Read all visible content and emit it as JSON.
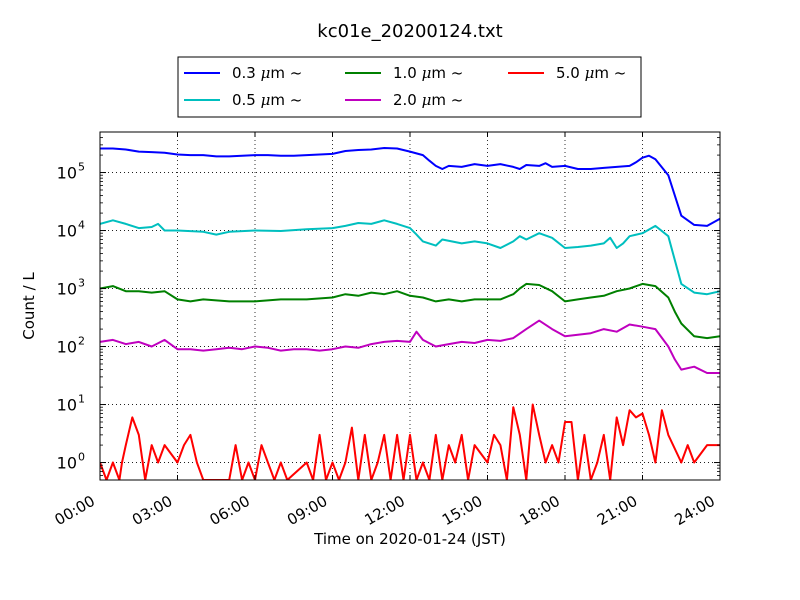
{
  "chart_data": {
    "type": "line",
    "title": "kc01e_20200124.txt",
    "xlabel": "Time on 2020-01-24 (JST)",
    "ylabel": "Count / L",
    "yscale": "log",
    "ylim": [
      0.5,
      500000
    ],
    "grid": true,
    "grid_style": "dotted",
    "legend_placement": "top-center",
    "x_unit": "hours since 00:00",
    "xlim": [
      0,
      24
    ],
    "x_ticks": [
      {
        "value": 0,
        "label": "00:00"
      },
      {
        "value": 3,
        "label": "03:00"
      },
      {
        "value": 6,
        "label": "06:00"
      },
      {
        "value": 9,
        "label": "09:00"
      },
      {
        "value": 12,
        "label": "12:00"
      },
      {
        "value": 15,
        "label": "15:00"
      },
      {
        "value": 18,
        "label": "18:00"
      },
      {
        "value": 21,
        "label": "21:00"
      },
      {
        "value": 24,
        "label": "24:00"
      }
    ],
    "y_ticks": [
      {
        "value": 1,
        "base": "10",
        "exp": "0"
      },
      {
        "value": 10,
        "base": "10",
        "exp": "1"
      },
      {
        "value": 100,
        "base": "10",
        "exp": "2"
      },
      {
        "value": 1000,
        "base": "10",
        "exp": "3"
      },
      {
        "value": 10000,
        "base": "10",
        "exp": "4"
      },
      {
        "value": 100000,
        "base": "10",
        "exp": "5"
      }
    ],
    "series": [
      {
        "name": "0.3 μm ~",
        "size": "0.3",
        "color": "#0000ff",
        "points": [
          [
            0,
            260000
          ],
          [
            0.5,
            260000
          ],
          [
            1,
            250000
          ],
          [
            1.5,
            230000
          ],
          [
            2,
            225000
          ],
          [
            2.5,
            220000
          ],
          [
            3,
            205000
          ],
          [
            3.5,
            200000
          ],
          [
            4,
            200000
          ],
          [
            4.5,
            190000
          ],
          [
            5,
            190000
          ],
          [
            5.5,
            195000
          ],
          [
            6,
            200000
          ],
          [
            6.5,
            200000
          ],
          [
            7,
            195000
          ],
          [
            7.5,
            195000
          ],
          [
            8,
            200000
          ],
          [
            8.5,
            205000
          ],
          [
            9,
            210000
          ],
          [
            9.5,
            235000
          ],
          [
            10,
            245000
          ],
          [
            10.5,
            250000
          ],
          [
            11,
            265000
          ],
          [
            11.5,
            260000
          ],
          [
            12,
            230000
          ],
          [
            12.5,
            200000
          ],
          [
            12.75,
            160000
          ],
          [
            13,
            130000
          ],
          [
            13.25,
            115000
          ],
          [
            13.5,
            130000
          ],
          [
            14,
            125000
          ],
          [
            14.5,
            140000
          ],
          [
            15,
            130000
          ],
          [
            15.5,
            140000
          ],
          [
            16,
            125000
          ],
          [
            16.25,
            115000
          ],
          [
            16.5,
            135000
          ],
          [
            17,
            130000
          ],
          [
            17.25,
            145000
          ],
          [
            17.5,
            125000
          ],
          [
            18,
            130000
          ],
          [
            18.5,
            115000
          ],
          [
            19,
            115000
          ],
          [
            19.5,
            120000
          ],
          [
            20,
            125000
          ],
          [
            20.5,
            130000
          ],
          [
            20.75,
            150000
          ],
          [
            21,
            180000
          ],
          [
            21.25,
            195000
          ],
          [
            21.5,
            170000
          ],
          [
            22,
            90000
          ],
          [
            22.5,
            18000
          ],
          [
            23,
            12500
          ],
          [
            23.5,
            12000
          ],
          [
            24,
            16000
          ]
        ]
      },
      {
        "name": "0.5 μm ~",
        "size": "0.5",
        "color": "#00bfbf",
        "points": [
          [
            0,
            13000
          ],
          [
            0.5,
            15000
          ],
          [
            1,
            13000
          ],
          [
            1.5,
            11000
          ],
          [
            2,
            11500
          ],
          [
            2.25,
            13000
          ],
          [
            2.5,
            10000
          ],
          [
            3,
            10000
          ],
          [
            4,
            9500
          ],
          [
            4.5,
            8500
          ],
          [
            5,
            9500
          ],
          [
            6,
            10000
          ],
          [
            7,
            9800
          ],
          [
            8,
            10500
          ],
          [
            9,
            11000
          ],
          [
            9.5,
            12000
          ],
          [
            10,
            13500
          ],
          [
            10.5,
            13000
          ],
          [
            11,
            15000
          ],
          [
            11.5,
            13000
          ],
          [
            12,
            11000
          ],
          [
            12.25,
            8500
          ],
          [
            12.5,
            6500
          ],
          [
            13,
            5500
          ],
          [
            13.25,
            7000
          ],
          [
            14,
            6000
          ],
          [
            14.5,
            6500
          ],
          [
            15,
            6000
          ],
          [
            15.5,
            5000
          ],
          [
            16,
            6500
          ],
          [
            16.25,
            8000
          ],
          [
            16.5,
            7000
          ],
          [
            17,
            9000
          ],
          [
            17.5,
            7500
          ],
          [
            18,
            5000
          ],
          [
            18.5,
            5200
          ],
          [
            19,
            5500
          ],
          [
            19.5,
            6000
          ],
          [
            19.75,
            7500
          ],
          [
            20,
            5000
          ],
          [
            20.25,
            6000
          ],
          [
            20.5,
            8000
          ],
          [
            21,
            9000
          ],
          [
            21.5,
            12000
          ],
          [
            22,
            8000
          ],
          [
            22.5,
            1200
          ],
          [
            23,
            850
          ],
          [
            23.5,
            800
          ],
          [
            24,
            900
          ]
        ]
      },
      {
        "name": "1.0 μm ~",
        "size": "1.0",
        "color": "#008000",
        "points": [
          [
            0,
            1000
          ],
          [
            0.5,
            1100
          ],
          [
            1,
            900
          ],
          [
            1.5,
            900
          ],
          [
            2,
            850
          ],
          [
            2.5,
            900
          ],
          [
            3,
            650
          ],
          [
            3.5,
            600
          ],
          [
            4,
            650
          ],
          [
            5,
            600
          ],
          [
            6,
            600
          ],
          [
            7,
            650
          ],
          [
            8,
            650
          ],
          [
            9,
            700
          ],
          [
            9.5,
            800
          ],
          [
            10,
            750
          ],
          [
            10.5,
            850
          ],
          [
            11,
            800
          ],
          [
            11.5,
            900
          ],
          [
            12,
            750
          ],
          [
            12.5,
            700
          ],
          [
            13,
            600
          ],
          [
            13.5,
            650
          ],
          [
            14,
            600
          ],
          [
            14.5,
            650
          ],
          [
            15,
            650
          ],
          [
            15.5,
            650
          ],
          [
            16,
            800
          ],
          [
            16.25,
            1000
          ],
          [
            16.5,
            1200
          ],
          [
            17,
            1150
          ],
          [
            17.5,
            900
          ],
          [
            18,
            600
          ],
          [
            18.5,
            650
          ],
          [
            19,
            700
          ],
          [
            19.5,
            750
          ],
          [
            20,
            900
          ],
          [
            20.5,
            1000
          ],
          [
            21,
            1200
          ],
          [
            21.5,
            1100
          ],
          [
            22,
            700
          ],
          [
            22.25,
            400
          ],
          [
            22.5,
            250
          ],
          [
            23,
            150
          ],
          [
            23.5,
            140
          ],
          [
            24,
            150
          ]
        ]
      },
      {
        "name": "2.0 μm ~",
        "size": "2.0",
        "color": "#bf00bf",
        "points": [
          [
            0,
            120
          ],
          [
            0.5,
            130
          ],
          [
            1,
            110
          ],
          [
            1.5,
            120
          ],
          [
            2,
            100
          ],
          [
            2.5,
            130
          ],
          [
            3,
            90
          ],
          [
            3.5,
            90
          ],
          [
            4,
            85
          ],
          [
            4.5,
            90
          ],
          [
            5,
            95
          ],
          [
            5.5,
            90
          ],
          [
            6,
            100
          ],
          [
            6.5,
            95
          ],
          [
            7,
            85
          ],
          [
            7.5,
            90
          ],
          [
            8,
            90
          ],
          [
            8.5,
            85
          ],
          [
            9,
            90
          ],
          [
            9.5,
            100
          ],
          [
            10,
            95
          ],
          [
            10.5,
            110
          ],
          [
            11,
            120
          ],
          [
            11.5,
            125
          ],
          [
            12,
            120
          ],
          [
            12.25,
            180
          ],
          [
            12.5,
            130
          ],
          [
            13,
            100
          ],
          [
            13.5,
            110
          ],
          [
            14,
            120
          ],
          [
            14.5,
            115
          ],
          [
            15,
            130
          ],
          [
            15.5,
            125
          ],
          [
            16,
            140
          ],
          [
            16.5,
            200
          ],
          [
            17,
            280
          ],
          [
            17.5,
            200
          ],
          [
            18,
            150
          ],
          [
            18.5,
            160
          ],
          [
            19,
            170
          ],
          [
            19.5,
            200
          ],
          [
            20,
            180
          ],
          [
            20.5,
            240
          ],
          [
            21,
            220
          ],
          [
            21.5,
            200
          ],
          [
            22,
            100
          ],
          [
            22.25,
            60
          ],
          [
            22.5,
            40
          ],
          [
            23,
            45
          ],
          [
            23.5,
            35
          ],
          [
            24,
            35
          ]
        ]
      },
      {
        "name": "5.0 μm ~",
        "size": "5.0",
        "color": "#ff0000",
        "points": [
          [
            0,
            1
          ],
          [
            0.25,
            0.5
          ],
          [
            0.5,
            1
          ],
          [
            0.75,
            0.5
          ],
          [
            0.85,
            1
          ],
          [
            1,
            2
          ],
          [
            1.25,
            6
          ],
          [
            1.5,
            3
          ],
          [
            1.75,
            0.5
          ],
          [
            2,
            2
          ],
          [
            2.25,
            1
          ],
          [
            2.5,
            2
          ],
          [
            3,
            1
          ],
          [
            3.25,
            2
          ],
          [
            3.5,
            3
          ],
          [
            3.75,
            1
          ],
          [
            4,
            0.5
          ],
          [
            4.5,
            0.5
          ],
          [
            5,
            0.5
          ],
          [
            5.25,
            2
          ],
          [
            5.5,
            0.5
          ],
          [
            5.75,
            1
          ],
          [
            6,
            0.5
          ],
          [
            6.25,
            2
          ],
          [
            6.5,
            1
          ],
          [
            6.75,
            0.5
          ],
          [
            7,
            1
          ],
          [
            7.25,
            0.5
          ],
          [
            8,
            1
          ],
          [
            8.25,
            0.5
          ],
          [
            8.5,
            3
          ],
          [
            8.75,
            0.5
          ],
          [
            9,
            1
          ],
          [
            9.25,
            0.5
          ],
          [
            9.5,
            1
          ],
          [
            9.75,
            4
          ],
          [
            10,
            0.5
          ],
          [
            10.25,
            3
          ],
          [
            10.5,
            0.5
          ],
          [
            10.75,
            1
          ],
          [
            11,
            3
          ],
          [
            11.25,
            0.5
          ],
          [
            11.5,
            3
          ],
          [
            11.75,
            0.5
          ],
          [
            12,
            3
          ],
          [
            12.25,
            0.5
          ],
          [
            12.5,
            1
          ],
          [
            12.75,
            0.5
          ],
          [
            13,
            3
          ],
          [
            13.25,
            0.5
          ],
          [
            13.5,
            2
          ],
          [
            13.75,
            1
          ],
          [
            14,
            3
          ],
          [
            14.25,
            0.5
          ],
          [
            14.5,
            2
          ],
          [
            15,
            1
          ],
          [
            15.25,
            3
          ],
          [
            15.5,
            2
          ],
          [
            15.75,
            0.5
          ],
          [
            16,
            9
          ],
          [
            16.25,
            3
          ],
          [
            16.5,
            0.5
          ],
          [
            16.75,
            10
          ],
          [
            17,
            3
          ],
          [
            17.25,
            1
          ],
          [
            17.5,
            2
          ],
          [
            17.75,
            1
          ],
          [
            18,
            5
          ],
          [
            18.25,
            5
          ],
          [
            18.5,
            0.5
          ],
          [
            18.75,
            3
          ],
          [
            19,
            0.5
          ],
          [
            19.25,
            1
          ],
          [
            19.5,
            3
          ],
          [
            19.75,
            0.5
          ],
          [
            20,
            6
          ],
          [
            20.25,
            2
          ],
          [
            20.5,
            8
          ],
          [
            20.75,
            6
          ],
          [
            21,
            7
          ],
          [
            21.25,
            3
          ],
          [
            21.5,
            1
          ],
          [
            21.75,
            8
          ],
          [
            22,
            3
          ],
          [
            22.5,
            1
          ],
          [
            22.75,
            2
          ],
          [
            23,
            1
          ],
          [
            23.5,
            2
          ],
          [
            24,
            2
          ]
        ]
      }
    ]
  }
}
